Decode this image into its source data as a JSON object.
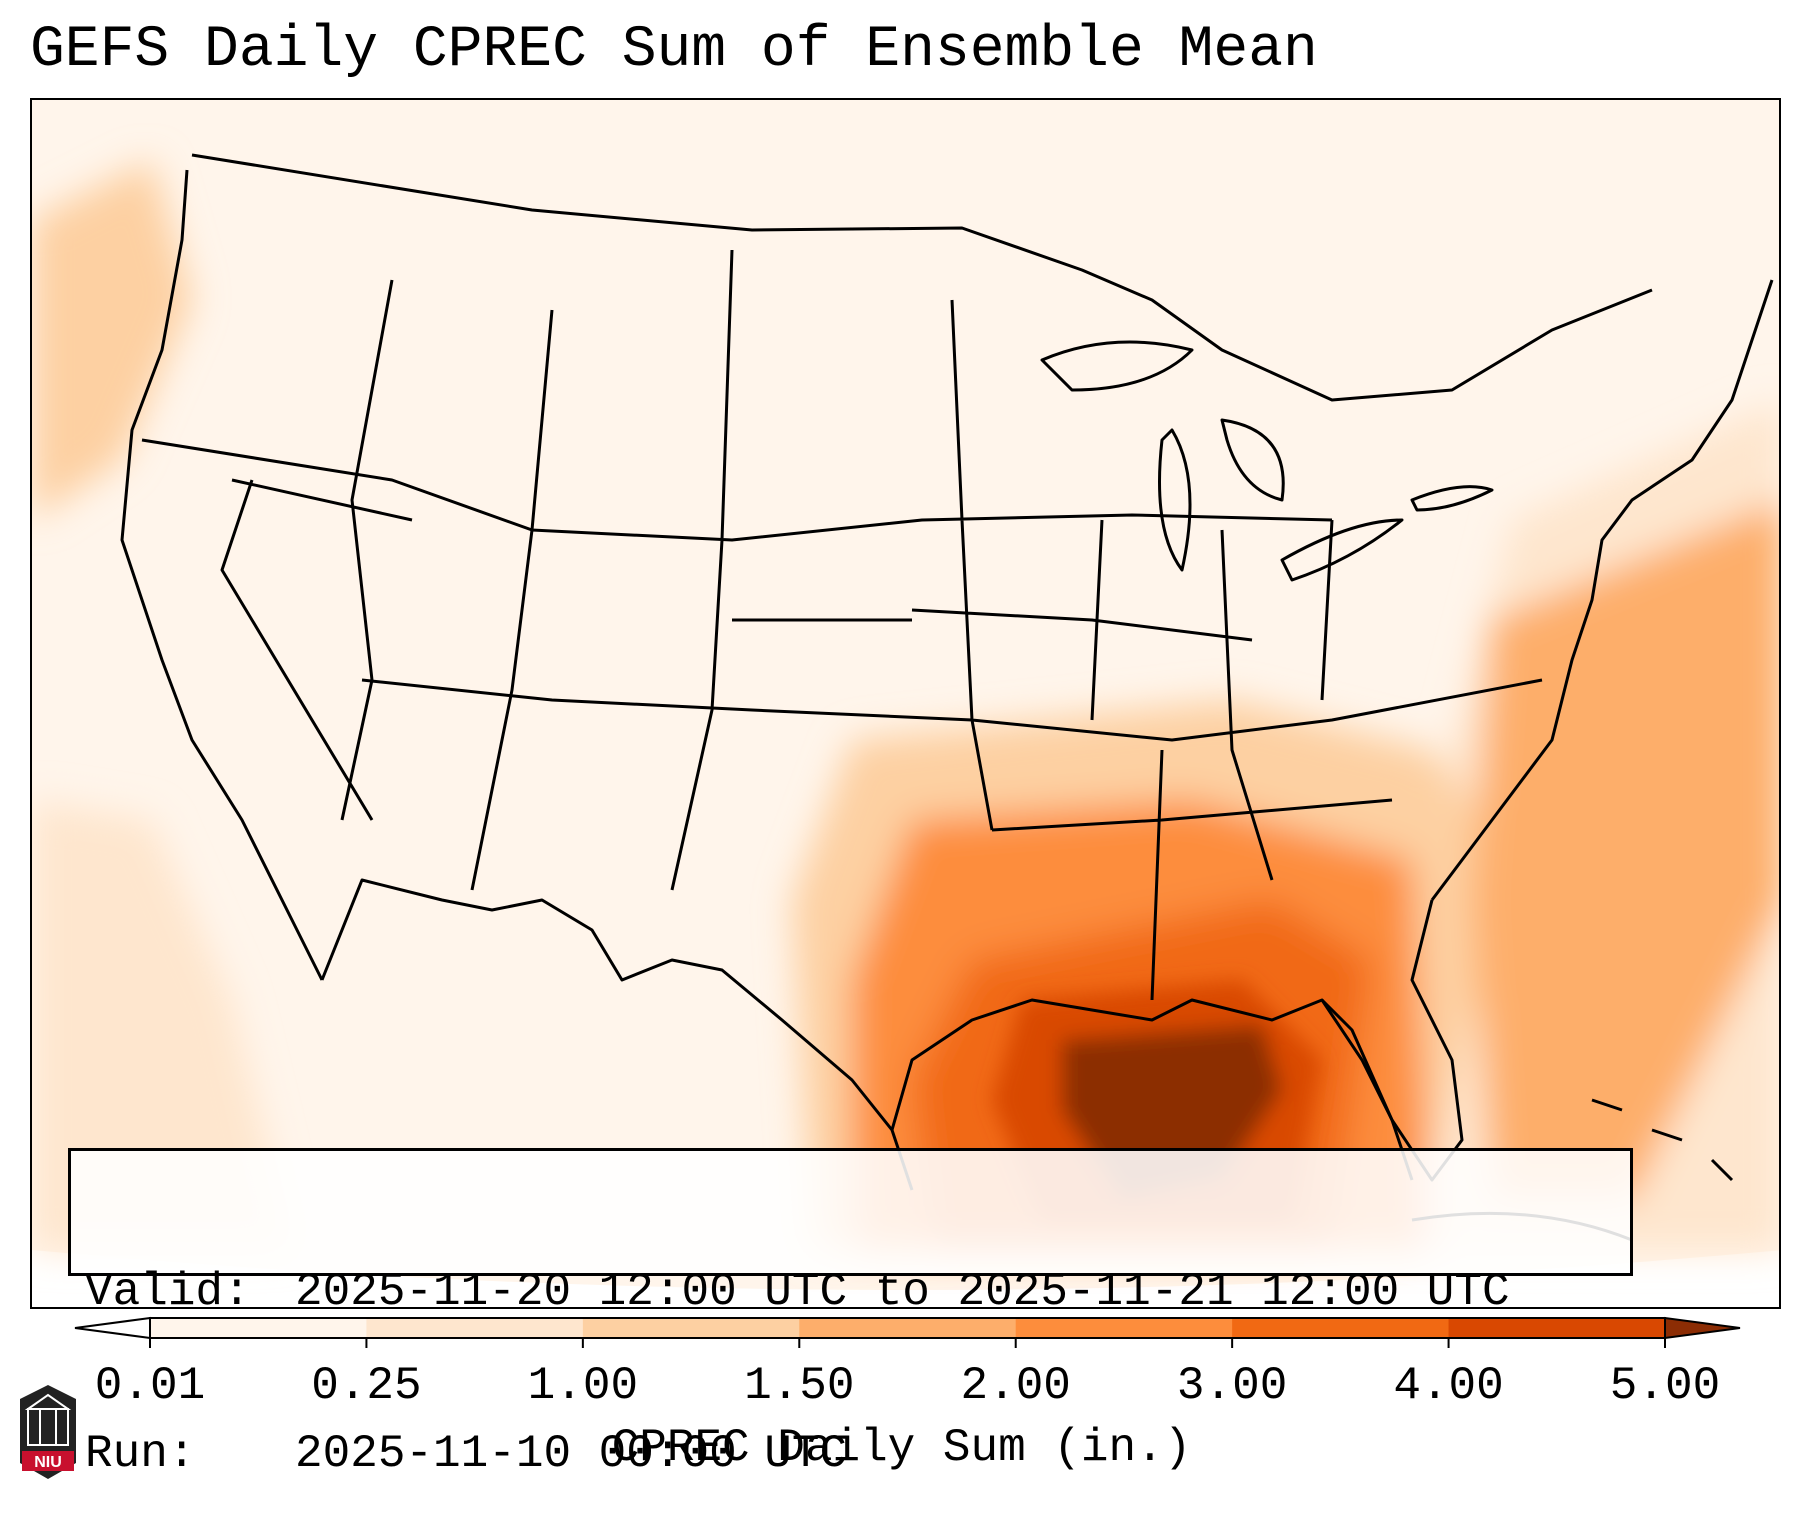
{
  "title": "GEFS Daily CPREC Sum of Ensemble Mean",
  "info": {
    "valid_label": "Valid:",
    "valid_value": "2025-11-20 12:00 UTC to 2025-11-21 12:00 UTC",
    "run_label": "Run:",
    "run_value": "2025-11-10 00:00 UTC"
  },
  "colorbar": {
    "label": "CPREC Daily Sum (in.)",
    "ticks": [
      "0.01",
      "0.25",
      "1.00",
      "1.50",
      "2.00",
      "3.00",
      "4.00",
      "5.00"
    ],
    "colors": [
      "#fff5eb",
      "#fee6ce",
      "#fdd0a2",
      "#fdae6b",
      "#fd8d3c",
      "#f16913",
      "#d94801",
      "#8c2d04"
    ],
    "extend": "both"
  },
  "map": {
    "region": "Contiguous United States",
    "features": [
      "state-borders",
      "coastlines",
      "great-lakes"
    ],
    "max_precip_area": "Gulf Coast (Louisiana / Mississippi / Alabama)"
  },
  "logo": {
    "text": "NIU",
    "colors": {
      "dark": "#222222",
      "red": "#c8102e"
    }
  }
}
